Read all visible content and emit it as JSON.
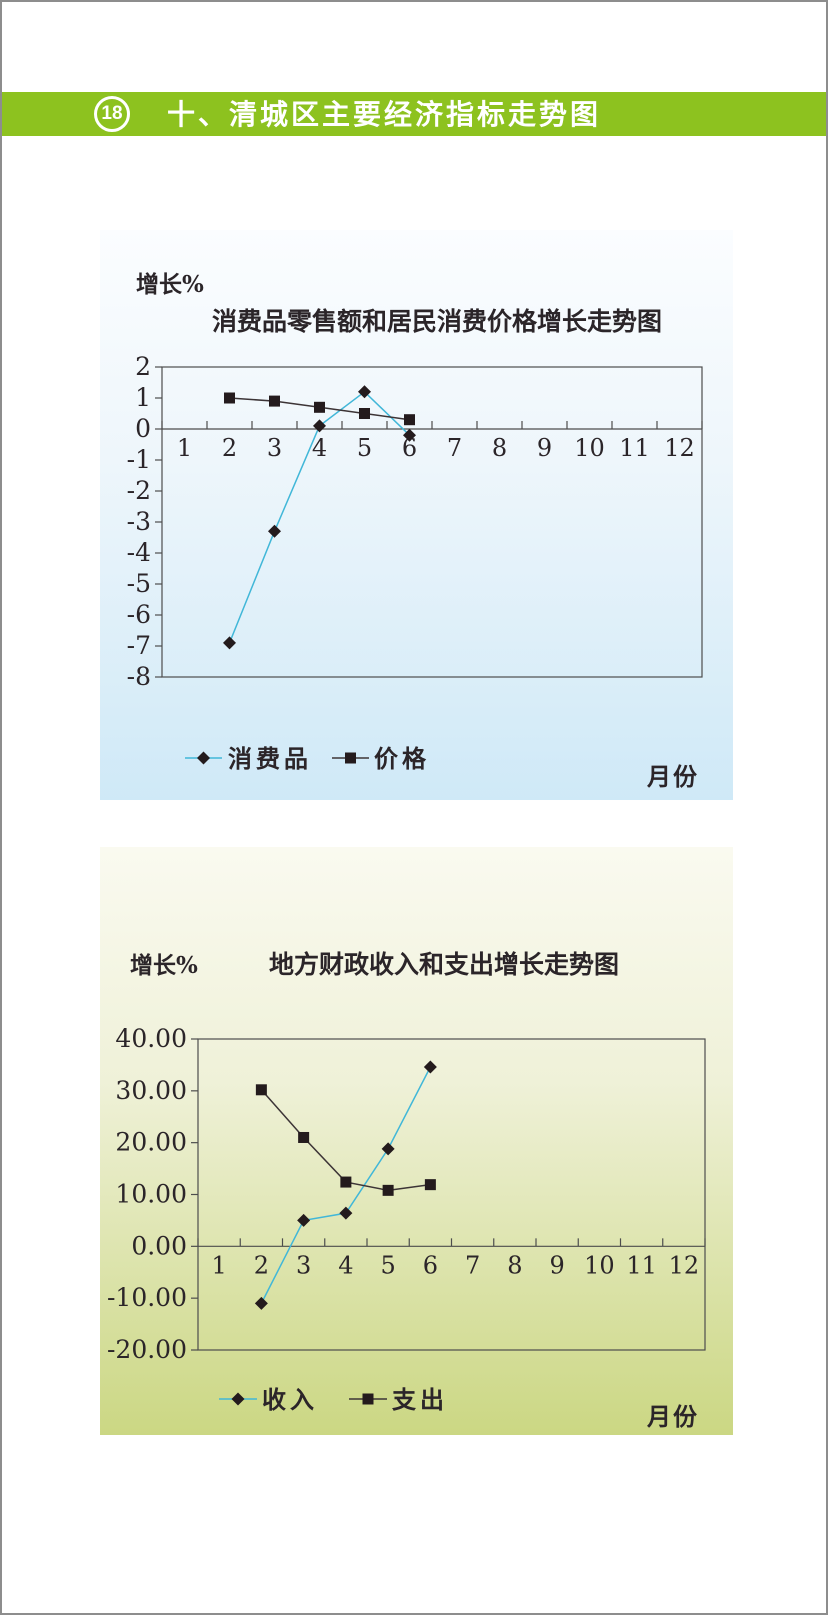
{
  "header": {
    "badge": "18",
    "title": "十、清城区主要经济指标走势图",
    "accent_color": "#8dc21f",
    "text_color": "#ffffff"
  },
  "page": {
    "border_color": "#8d8d8d",
    "background": "#ffffff"
  },
  "chart_data": [
    {
      "type": "line",
      "title": "消费品零售额和居民消费价格增长走势图",
      "ylabel": "增长%",
      "xlabel": "月份",
      "categories": [
        "1",
        "2",
        "3",
        "4",
        "5",
        "6",
        "7",
        "8",
        "9",
        "10",
        "11",
        "12"
      ],
      "ylim": [
        -8,
        2
      ],
      "yticks": [
        {
          "v": 2,
          "label": "2"
        },
        {
          "v": 1,
          "label": "1"
        },
        {
          "v": 0,
          "label": "0"
        },
        {
          "v": -1,
          "label": "-1"
        },
        {
          "v": -2,
          "label": "-2"
        },
        {
          "v": -3,
          "label": "-3"
        },
        {
          "v": -4,
          "label": "-4"
        },
        {
          "v": -5,
          "label": "-5"
        },
        {
          "v": -6,
          "label": "-6"
        },
        {
          "v": -7,
          "label": "-7"
        },
        {
          "v": -8,
          "label": "-8"
        }
      ],
      "grid": false,
      "legend_position": "bottom",
      "series": [
        {
          "name": "消费品",
          "marker": "diamond",
          "line_color": "#41b7d8",
          "marker_color": "#241b1d",
          "months": [
            2,
            3,
            4,
            5,
            6
          ],
          "values": [
            -6.9,
            -3.3,
            0.1,
            1.2,
            -0.2
          ]
        },
        {
          "name": "价格",
          "marker": "square",
          "line_color": "#3c3436",
          "marker_color": "#241b1d",
          "months": [
            2,
            3,
            4,
            5,
            6
          ],
          "values": [
            1.0,
            0.9,
            0.7,
            0.5,
            0.3
          ]
        }
      ],
      "panel_gradient": [
        "#fbfdff",
        "#eef6fb",
        "#cfe9f7"
      ],
      "axis_color": "#4d4d4d",
      "text_color": "#2b2529"
    },
    {
      "type": "line",
      "title": "地方财政收入和支出增长走势图",
      "ylabel": "增长%",
      "xlabel": "月份",
      "categories": [
        "1",
        "2",
        "3",
        "4",
        "5",
        "6",
        "7",
        "8",
        "9",
        "10",
        "11",
        "12"
      ],
      "ylim": [
        -20,
        40
      ],
      "yticks": [
        {
          "v": 40,
          "label": "40.00"
        },
        {
          "v": 30,
          "label": "30.00"
        },
        {
          "v": 20,
          "label": "20.00"
        },
        {
          "v": 10,
          "label": "10.00"
        },
        {
          "v": 0,
          "label": "0.00"
        },
        {
          "v": -10,
          "label": "-10.00"
        },
        {
          "v": -20,
          "label": "-20.00"
        }
      ],
      "grid": false,
      "legend_position": "bottom",
      "series": [
        {
          "name": "收入",
          "marker": "diamond",
          "line_color": "#41b7d8",
          "marker_color": "#241b1d",
          "months": [
            2,
            3,
            4,
            5,
            6
          ],
          "values": [
            -11.0,
            5.0,
            6.4,
            18.8,
            34.6
          ]
        },
        {
          "name": "支出",
          "marker": "square",
          "line_color": "#3c3436",
          "marker_color": "#241b1d",
          "months": [
            2,
            3,
            4,
            5,
            6
          ],
          "values": [
            30.2,
            21.0,
            12.4,
            10.8,
            11.9
          ]
        }
      ],
      "panel_gradient": [
        "#fafaf0",
        "#eff1d8",
        "#cbd783"
      ],
      "axis_color": "#4d4d4d",
      "text_color": "#2b2529"
    }
  ]
}
